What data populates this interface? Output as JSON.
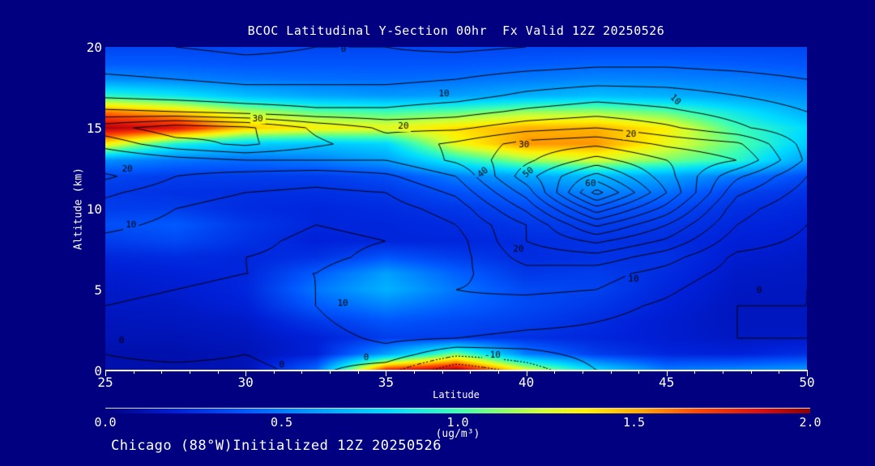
{
  "window": {
    "background": "#000080",
    "text_color": "#ffffff",
    "contour_line_color": "#000000"
  },
  "title": {
    "text": "BCOC Latitudinal Y-Section 00hr  Fx Valid 12Z 20250526"
  },
  "footer_annotation": {
    "text": "Chicago (88°W)Initialized 12Z 20250526"
  },
  "axes": {
    "x": {
      "label": "Latitude",
      "min": 25,
      "max": 50,
      "major_ticks": [
        25,
        30,
        35,
        40,
        45,
        50
      ],
      "minor_step": 1
    },
    "y": {
      "label": "Altitude (km)",
      "min": 0,
      "max": 20,
      "major_ticks": [
        0,
        5,
        10,
        15,
        20
      ]
    }
  },
  "colorbar": {
    "unit": "(ug/m³)",
    "tick_labels": [
      "0.0",
      "0.5",
      "1.0",
      "1.5",
      "2.0"
    ],
    "min": 0.0,
    "max": 2.0,
    "stops": [
      {
        "p": 0.0,
        "c": "#000082"
      },
      {
        "p": 0.1,
        "c": "#0020d8"
      },
      {
        "p": 0.2,
        "c": "#005aff"
      },
      {
        "p": 0.3,
        "c": "#00a0ff"
      },
      {
        "p": 0.4,
        "c": "#00dcff"
      },
      {
        "p": 0.5,
        "c": "#3cffb4"
      },
      {
        "p": 0.56,
        "c": "#87ff69"
      },
      {
        "p": 0.62,
        "c": "#d2ff32"
      },
      {
        "p": 0.68,
        "c": "#fff000"
      },
      {
        "p": 0.76,
        "c": "#ffa800"
      },
      {
        "p": 0.84,
        "c": "#ff4800"
      },
      {
        "p": 0.93,
        "c": "#dc0f0f"
      },
      {
        "p": 1.0,
        "c": "#8c0000"
      }
    ]
  },
  "chart_data": {
    "type": "heatmap",
    "subtype": "filled-contour-cross-section",
    "title": "BCOC Latitudinal Y-Section 00hr  Fx Valid 12Z 20250526",
    "xlabel": "Latitude",
    "ylabel": "Altitude (km)",
    "xlim": [
      25,
      50
    ],
    "ylim": [
      0,
      20
    ],
    "fill_units": "ug/m³",
    "fill_range": [
      0.0,
      2.0
    ],
    "x_lats": [
      25,
      27.5,
      30,
      32.5,
      35,
      37.5,
      40,
      42.5,
      45,
      47.5,
      50
    ],
    "y_alts_km": [
      20,
      19,
      18,
      17,
      16,
      15,
      14,
      13,
      12,
      11,
      10,
      9,
      8,
      7,
      6,
      5,
      4,
      3,
      2,
      1,
      0
    ],
    "fill_values": [
      [
        0.33,
        0.33,
        0.33,
        0.33,
        0.33,
        0.33,
        0.33,
        0.33,
        0.33,
        0.33,
        0.33
      ],
      [
        0.4,
        0.4,
        0.38,
        0.38,
        0.38,
        0.38,
        0.4,
        0.42,
        0.42,
        0.4,
        0.38
      ],
      [
        0.55,
        0.52,
        0.48,
        0.46,
        0.45,
        0.47,
        0.5,
        0.53,
        0.52,
        0.5,
        0.46
      ],
      [
        0.95,
        0.85,
        0.7,
        0.62,
        0.58,
        0.6,
        0.66,
        0.7,
        0.66,
        0.6,
        0.55
      ],
      [
        1.6,
        1.45,
        1.2,
        1.05,
        1.0,
        1.05,
        1.15,
        1.15,
        1.05,
        0.85,
        0.65
      ],
      [
        1.95,
        1.85,
        1.45,
        1.35,
        1.3,
        1.4,
        1.5,
        1.5,
        1.35,
        1.0,
        0.8
      ],
      [
        1.35,
        0.9,
        0.75,
        0.72,
        0.78,
        1.3,
        1.55,
        1.55,
        1.3,
        1.05,
        0.75
      ],
      [
        0.55,
        0.48,
        0.45,
        0.5,
        0.6,
        0.9,
        1.15,
        1.25,
        1.1,
        0.95,
        0.6
      ],
      [
        0.33,
        0.3,
        0.3,
        0.3,
        0.35,
        0.5,
        0.62,
        0.68,
        0.62,
        0.48,
        0.35
      ],
      [
        0.28,
        0.26,
        0.25,
        0.25,
        0.28,
        0.36,
        0.45,
        0.52,
        0.46,
        0.32,
        0.26
      ],
      [
        0.3,
        0.3,
        0.24,
        0.22,
        0.24,
        0.28,
        0.34,
        0.38,
        0.34,
        0.25,
        0.22
      ],
      [
        0.36,
        0.4,
        0.28,
        0.22,
        0.22,
        0.24,
        0.28,
        0.3,
        0.28,
        0.22,
        0.2
      ],
      [
        0.3,
        0.34,
        0.26,
        0.2,
        0.22,
        0.22,
        0.24,
        0.26,
        0.24,
        0.2,
        0.18
      ],
      [
        0.22,
        0.24,
        0.22,
        0.26,
        0.38,
        0.3,
        0.24,
        0.26,
        0.26,
        0.18,
        0.16
      ],
      [
        0.18,
        0.2,
        0.22,
        0.4,
        0.6,
        0.42,
        0.28,
        0.3,
        0.24,
        0.16,
        0.15
      ],
      [
        0.16,
        0.18,
        0.22,
        0.48,
        0.66,
        0.48,
        0.34,
        0.32,
        0.22,
        0.15,
        0.14
      ],
      [
        0.15,
        0.16,
        0.2,
        0.4,
        0.52,
        0.42,
        0.34,
        0.28,
        0.2,
        0.14,
        0.14
      ],
      [
        0.13,
        0.14,
        0.16,
        0.28,
        0.38,
        0.34,
        0.3,
        0.24,
        0.18,
        0.14,
        0.14
      ],
      [
        0.12,
        0.12,
        0.14,
        0.2,
        0.3,
        0.3,
        0.26,
        0.22,
        0.18,
        0.15,
        0.16
      ],
      [
        0.1,
        0.1,
        0.12,
        0.2,
        0.6,
        1.1,
        0.5,
        0.3,
        0.22,
        0.2,
        0.25
      ],
      [
        0.1,
        0.1,
        0.12,
        0.45,
        1.8,
        2.0,
        1.3,
        0.8,
        0.5,
        0.55,
        0.6
      ]
    ],
    "contour_interval": 5,
    "contour_levels": [
      -10,
      -5,
      0,
      5,
      10,
      15,
      20,
      25,
      30,
      35,
      40,
      45,
      50,
      55,
      60
    ],
    "contour_values": [
      [
        1,
        0,
        -1,
        0,
        0,
        -1,
        0,
        1,
        1,
        1,
        1
      ],
      [
        3,
        2,
        1,
        1,
        1,
        2,
        3,
        4,
        4,
        3,
        2
      ],
      [
        6,
        5,
        4,
        4,
        4,
        5,
        7,
        8,
        8,
        7,
        5
      ],
      [
        9,
        8,
        7,
        7,
        7,
        8,
        11,
        13,
        12,
        10,
        8
      ],
      [
        16,
        15,
        13,
        11,
        11,
        13,
        16,
        18,
        16,
        13,
        10
      ],
      [
        28,
        33,
        31,
        24,
        19,
        19,
        23,
        25,
        21,
        16,
        11
      ],
      [
        22,
        28,
        31,
        26,
        22,
        26,
        32,
        34,
        29,
        26,
        13
      ],
      [
        15,
        18,
        20,
        20,
        20,
        26,
        34,
        42,
        35,
        30,
        14
      ],
      [
        21,
        15,
        13,
        12,
        14,
        20,
        38,
        52,
        37,
        21,
        10
      ],
      [
        16,
        12,
        10,
        9,
        10,
        16,
        32,
        62,
        40,
        16,
        8
      ],
      [
        13,
        10,
        8,
        7,
        8,
        12,
        26,
        48,
        33,
        12,
        6
      ],
      [
        11,
        9,
        7,
        5,
        6,
        10,
        20,
        36,
        25,
        10,
        5
      ],
      [
        9,
        8,
        6,
        4,
        5,
        8,
        20,
        26,
        19,
        7,
        4
      ],
      [
        8,
        7,
        5,
        4,
        6,
        8,
        17,
        18,
        12,
        4,
        3
      ],
      [
        7,
        6,
        5,
        5,
        8,
        9,
        13,
        12,
        8,
        3,
        2
      ],
      [
        6,
        5,
        4,
        5,
        9,
        10,
        11,
        10,
        6,
        1,
        0
      ],
      [
        5,
        4,
        3,
        5,
        10,
        9,
        8,
        7,
        4,
        0,
        0
      ],
      [
        4,
        3,
        2,
        4,
        8,
        7,
        6,
        5,
        3,
        0,
        0
      ],
      [
        1,
        2,
        1,
        3,
        6,
        5,
        4,
        4,
        2,
        0,
        0
      ],
      [
        0,
        1,
        0,
        2,
        3,
        -4,
        -2,
        2,
        1,
        1,
        1
      ],
      [
        -1,
        -1,
        -1,
        1,
        -3,
        -14,
        -8,
        0,
        1,
        1,
        2
      ]
    ],
    "contour_labels": [
      {
        "value": 0,
        "lat": 33.49,
        "km": 19.85,
        "rot": 0
      },
      {
        "value": 10,
        "lat": 37.07,
        "km": 17.1,
        "rot": 0
      },
      {
        "value": 30,
        "lat": 30.43,
        "km": 15.55,
        "rot": 0
      },
      {
        "value": 20,
        "lat": 35.62,
        "km": 15.1,
        "rot": 0
      },
      {
        "value": 20,
        "lat": 43.73,
        "km": 14.6,
        "rot": 0
      },
      {
        "value": 10,
        "lat": 45.32,
        "km": 16.75,
        "rot": 45
      },
      {
        "value": 30,
        "lat": 39.92,
        "km": 13.95,
        "rot": 0
      },
      {
        "value": 20,
        "lat": 25.78,
        "km": 12.45,
        "rot": 0
      },
      {
        "value": 40,
        "lat": 38.45,
        "km": 12.25,
        "rot": -40
      },
      {
        "value": 50,
        "lat": 40.07,
        "km": 12.25,
        "rot": -40
      },
      {
        "value": 60,
        "lat": 42.29,
        "km": 11.55,
        "rot": 0
      },
      {
        "value": 10,
        "lat": 25.92,
        "km": 9.0,
        "rot": 0
      },
      {
        "value": 20,
        "lat": 39.72,
        "km": 7.5,
        "rot": 0
      },
      {
        "value": 10,
        "lat": 43.82,
        "km": 5.65,
        "rot": 0
      },
      {
        "value": 0,
        "lat": 48.3,
        "km": 4.95,
        "rot": 0
      },
      {
        "value": 10,
        "lat": 33.46,
        "km": 4.15,
        "rot": 0
      },
      {
        "value": 0,
        "lat": 25.58,
        "km": 1.85,
        "rot": 0
      },
      {
        "value": 0,
        "lat": 31.29,
        "km": 0.35,
        "rot": 0
      },
      {
        "value": 0,
        "lat": 34.3,
        "km": 0.8,
        "rot": 0
      },
      {
        "value": -10,
        "lat": 38.8,
        "km": 0.95,
        "rot": 0
      }
    ],
    "legend_position": "bottom-colorbar",
    "grid": false
  }
}
